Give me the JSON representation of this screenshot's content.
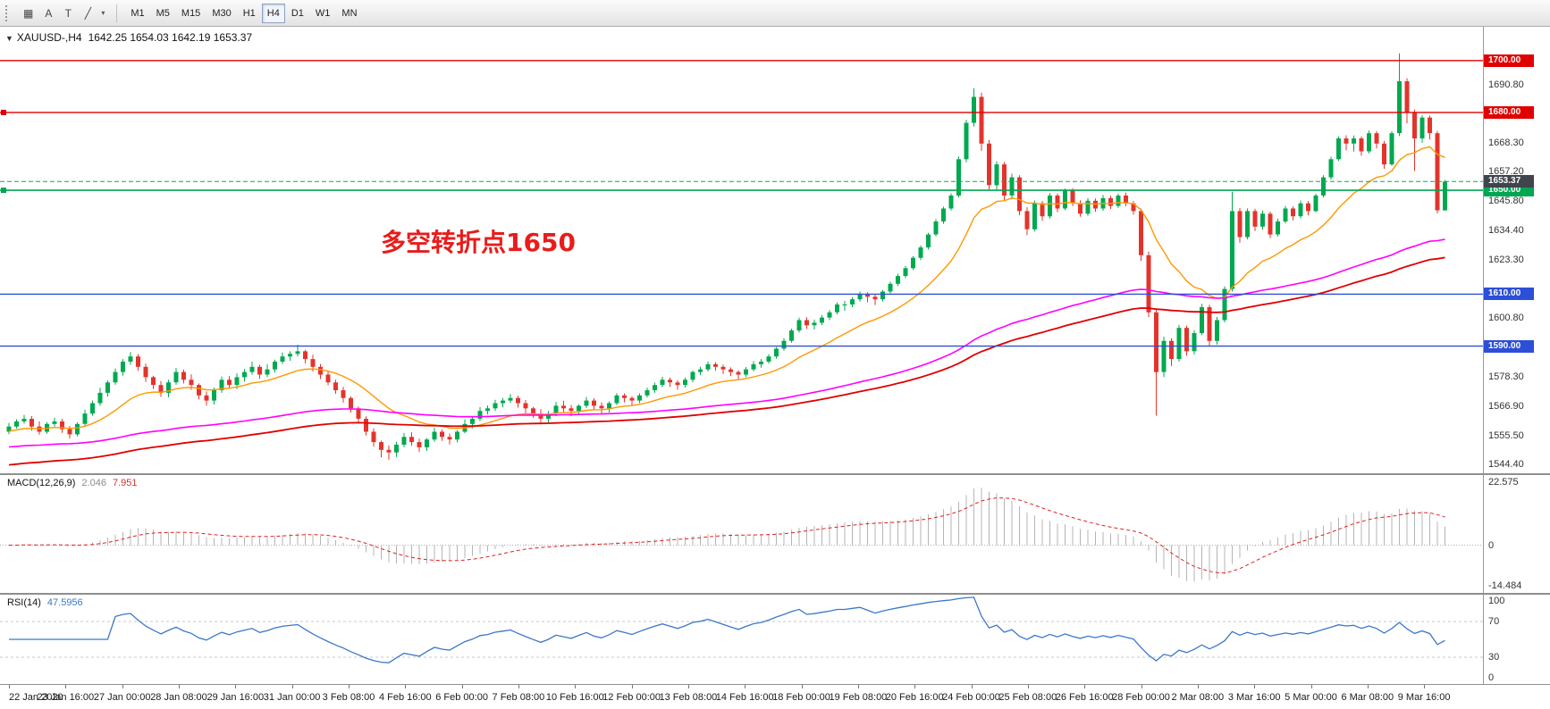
{
  "icons": {
    "collapse_glyph": "▼"
  },
  "toolbar": {
    "tools": [
      {
        "name": "objects-grid-icon",
        "glyph": "▦"
      },
      {
        "name": "text-annotation-icon",
        "glyph": "A"
      },
      {
        "name": "text-tool-icon",
        "glyph": "T"
      },
      {
        "name": "line-studies-icon",
        "glyph": "╱"
      },
      {
        "name": "line-studies-caret-icon",
        "glyph": "▾"
      }
    ],
    "timeframes": [
      "M1",
      "M5",
      "M15",
      "M30",
      "H1",
      "H4",
      "D1",
      "W1",
      "MN"
    ],
    "active": "H4"
  },
  "chart": {
    "title_symbol": "XAUUSD-,H4",
    "title_ohlc": "1642.25 1654.03 1642.19 1653.37"
  },
  "chart_data": {
    "type": "candlestick",
    "symbol": "XAUUSD-",
    "period": "H4",
    "price_range": [
      1541,
      1713
    ],
    "colors": {
      "candle_up": "#00a94f",
      "candle_down": "#e3342c",
      "macd_hist": "#b4b4b4",
      "macd_signal": "#e02020",
      "rsi": "#3a78c9"
    },
    "y_ticks": [
      1690.8,
      1668.3,
      1657.2,
      1645.8,
      1634.4,
      1623.3,
      1600.8,
      1578.3,
      1566.9,
      1555.5,
      1544.4
    ],
    "horizontal_lines": [
      {
        "price": 1700,
        "color": "#e00000",
        "width": 1.4
      },
      {
        "price": 1680,
        "color": "#e00000",
        "width": 1.4,
        "left_marker": true
      },
      {
        "price": 1650,
        "color": "#00a651",
        "width": 1.6,
        "left_marker": true
      },
      {
        "price": 1610,
        "color": "#2c4fd8",
        "width": 1.4
      },
      {
        "price": 1590,
        "color": "#2c4fd8",
        "width": 1.4
      }
    ],
    "current_price": {
      "value": 1653.37,
      "line_color": "#19a15f",
      "badge_bg": "#3f444d"
    },
    "annotation": {
      "text": "多空转折点1650",
      "color": "#e81c1c"
    },
    "moving_averages": [
      {
        "name": "ma-fast-orange",
        "period": 16,
        "seed": 1557,
        "color": "#ff9800",
        "width": 1.4
      },
      {
        "name": "ma-mid-magenta",
        "period": 96,
        "seed": 1551,
        "color": "#ff00ff",
        "width": 1.6
      },
      {
        "name": "ma-slow-red",
        "period": 120,
        "seed": 1544,
        "color": "#e00000",
        "width": 1.8
      }
    ],
    "indicators": [
      {
        "name": "MACD",
        "label": "MACD(12,26,9)",
        "values": [
          "2.046",
          "7.951"
        ],
        "params": [
          12,
          26,
          9
        ],
        "range": [
          -17,
          25
        ],
        "axis_ticks": [
          "22.575",
          "0",
          "-14.484"
        ]
      },
      {
        "name": "RSI",
        "label": "RSI(14)",
        "values": [
          "47.5956"
        ],
        "period": 14,
        "range": [
          0,
          100
        ],
        "axis_ticks": [
          "100",
          "70",
          "30",
          "0"
        ],
        "levels": [
          70,
          30
        ]
      }
    ],
    "x_labels": [
      "22 Jan 2020",
      "23 Jan 16:00",
      "27 Jan 00:00",
      "28 Jan 08:00",
      "29 Jan 16:00",
      "31 Jan 00:00",
      "3 Feb 08:00",
      "4 Feb 16:00",
      "6 Feb 00:00",
      "7 Feb 08:00",
      "10 Feb 16:00",
      "12 Feb 00:00",
      "13 Feb 08:00",
      "14 Feb 16:00",
      "18 Feb 00:00",
      "19 Feb 08:00",
      "20 Feb 16:00",
      "24 Feb 00:00",
      "25 Feb 08:00",
      "26 Feb 16:00",
      "28 Feb 00:00",
      "2 Mar 08:00",
      "3 Mar 16:00",
      "5 Mar 00:00",
      "6 Mar 08:00",
      "9 Mar 16:00"
    ],
    "candles": [
      [
        1557,
        1560.4,
        1556.1,
        1559
      ],
      [
        1559,
        1561.8,
        1558.2,
        1561
      ],
      [
        1561,
        1563.5,
        1560.1,
        1562
      ],
      [
        1562,
        1563,
        1557.4,
        1559
      ],
      [
        1559,
        1561,
        1555.9,
        1557
      ],
      [
        1557,
        1560.7,
        1556.2,
        1560
      ],
      [
        1560,
        1562.4,
        1559,
        1561
      ],
      [
        1561,
        1561.9,
        1556.6,
        1558
      ],
      [
        1558,
        1559.2,
        1554.3,
        1556
      ],
      [
        1556,
        1560.6,
        1555.2,
        1560
      ],
      [
        1560,
        1565.5,
        1559.3,
        1564
      ],
      [
        1564,
        1569,
        1563.2,
        1568
      ],
      [
        1568,
        1574,
        1567,
        1572
      ],
      [
        1572,
        1576.8,
        1570.5,
        1576
      ],
      [
        1576,
        1581.4,
        1575.1,
        1580
      ],
      [
        1580,
        1585,
        1578.6,
        1584
      ],
      [
        1584,
        1587.7,
        1582.8,
        1586
      ],
      [
        1586,
        1586.9,
        1580.5,
        1582
      ],
      [
        1582,
        1583.2,
        1576.2,
        1578
      ],
      [
        1578,
        1578.6,
        1573.4,
        1575
      ],
      [
        1575,
        1576.5,
        1570.4,
        1572
      ],
      [
        1572,
        1577,
        1570.3,
        1576
      ],
      [
        1576,
        1581.5,
        1575.1,
        1580
      ],
      [
        1580,
        1580.9,
        1575.6,
        1577
      ],
      [
        1577,
        1579.1,
        1573.2,
        1575
      ],
      [
        1575,
        1575.6,
        1569.4,
        1571
      ],
      [
        1571,
        1572.5,
        1567.1,
        1569
      ],
      [
        1569,
        1574,
        1567.5,
        1573
      ],
      [
        1573,
        1578.3,
        1572,
        1577
      ],
      [
        1577,
        1578.4,
        1573.6,
        1575
      ],
      [
        1575,
        1579.5,
        1573.4,
        1578
      ],
      [
        1578,
        1581.2,
        1576.3,
        1580
      ],
      [
        1580,
        1584,
        1579,
        1582
      ],
      [
        1582,
        1582.8,
        1577.4,
        1579
      ],
      [
        1579,
        1583,
        1578,
        1581
      ],
      [
        1581,
        1584.8,
        1579.8,
        1584
      ],
      [
        1584,
        1587.5,
        1583.1,
        1586
      ],
      [
        1586,
        1588,
        1584.3,
        1587
      ],
      [
        1587,
        1590.5,
        1586,
        1588
      ],
      [
        1588,
        1588.6,
        1583.4,
        1585
      ],
      [
        1585,
        1586.7,
        1580.2,
        1582
      ],
      [
        1582,
        1583.1,
        1577.3,
        1579
      ],
      [
        1579,
        1580.4,
        1574.9,
        1576
      ],
      [
        1576,
        1577,
        1571.6,
        1573
      ],
      [
        1573,
        1574.3,
        1568.2,
        1570
      ],
      [
        1570,
        1570.6,
        1564.4,
        1566
      ],
      [
        1566,
        1566.7,
        1560.3,
        1562
      ],
      [
        1562,
        1562.9,
        1555.5,
        1557
      ],
      [
        1557,
        1558.3,
        1551.2,
        1553
      ],
      [
        1553,
        1553.6,
        1547.1,
        1550
      ],
      [
        1550,
        1551.7,
        1546.2,
        1549
      ],
      [
        1549,
        1553.1,
        1547.3,
        1552
      ],
      [
        1552,
        1556.5,
        1551,
        1555
      ],
      [
        1555,
        1556.8,
        1551.6,
        1553
      ],
      [
        1553,
        1554.3,
        1549.2,
        1551
      ],
      [
        1551,
        1554.6,
        1549.6,
        1554
      ],
      [
        1554,
        1558.5,
        1553.1,
        1557
      ],
      [
        1557,
        1557.8,
        1553.5,
        1555
      ],
      [
        1555,
        1556.3,
        1552.1,
        1554
      ],
      [
        1554,
        1557.6,
        1552.9,
        1557
      ],
      [
        1557,
        1561.7,
        1556.4,
        1560
      ],
      [
        1560,
        1563,
        1558.3,
        1562
      ],
      [
        1562,
        1566.5,
        1561.1,
        1565
      ],
      [
        1565,
        1567.1,
        1563.6,
        1566
      ],
      [
        1566,
        1569.3,
        1565,
        1568
      ],
      [
        1568,
        1570,
        1566.4,
        1569
      ],
      [
        1569,
        1571.5,
        1568.1,
        1570
      ],
      [
        1570,
        1570.9,
        1566.3,
        1568
      ],
      [
        1568,
        1569.2,
        1564.2,
        1566
      ],
      [
        1566,
        1566.6,
        1562.4,
        1564
      ],
      [
        1564,
        1565.7,
        1560.2,
        1562
      ],
      [
        1562,
        1565,
        1560.3,
        1564
      ],
      [
        1564,
        1568.4,
        1563,
        1567
      ],
      [
        1567,
        1568.9,
        1564.6,
        1566
      ],
      [
        1566,
        1567.3,
        1563,
        1565
      ],
      [
        1565,
        1567.6,
        1563.5,
        1567
      ],
      [
        1567,
        1570.4,
        1566.1,
        1569
      ],
      [
        1569,
        1569.9,
        1565.3,
        1567
      ],
      [
        1567,
        1568.3,
        1564,
        1566
      ],
      [
        1566,
        1568.7,
        1564.4,
        1568
      ],
      [
        1568,
        1571.9,
        1567.2,
        1571
      ],
      [
        1571,
        1571.8,
        1568.3,
        1570
      ],
      [
        1570,
        1570.7,
        1567.1,
        1569
      ],
      [
        1569,
        1571.8,
        1568,
        1571
      ],
      [
        1571,
        1574,
        1570.2,
        1573
      ],
      [
        1573,
        1575.9,
        1572,
        1575
      ],
      [
        1575,
        1578.2,
        1574.1,
        1577
      ],
      [
        1577,
        1577.9,
        1574.3,
        1576
      ],
      [
        1576,
        1576.8,
        1573.2,
        1575
      ],
      [
        1575,
        1577.9,
        1574,
        1577
      ],
      [
        1577,
        1580.6,
        1576.1,
        1580
      ],
      [
        1580,
        1582,
        1578.8,
        1581
      ],
      [
        1581,
        1584.1,
        1580.2,
        1583
      ],
      [
        1583,
        1583.8,
        1580.5,
        1582
      ],
      [
        1582,
        1582.9,
        1579.3,
        1581
      ],
      [
        1581,
        1581.8,
        1578.4,
        1580
      ],
      [
        1580,
        1580.7,
        1577.2,
        1579
      ],
      [
        1579,
        1581.9,
        1578.1,
        1581
      ],
      [
        1581,
        1584.2,
        1580.3,
        1583
      ],
      [
        1583,
        1585,
        1581.7,
        1584
      ],
      [
        1584,
        1586.9,
        1583.2,
        1586
      ],
      [
        1586,
        1589.6,
        1585.1,
        1589
      ],
      [
        1589,
        1593,
        1588.2,
        1592
      ],
      [
        1592,
        1596.7,
        1591.3,
        1596
      ],
      [
        1596,
        1601,
        1595.2,
        1600
      ],
      [
        1600,
        1601.1,
        1596.6,
        1598
      ],
      [
        1598,
        1600.2,
        1596.4,
        1599
      ],
      [
        1599,
        1602,
        1598.1,
        1601
      ],
      [
        1601,
        1603.9,
        1600,
        1603
      ],
      [
        1603,
        1606.8,
        1602.2,
        1606
      ],
      [
        1606,
        1607.4,
        1603.6,
        1606
      ],
      [
        1606,
        1608.9,
        1605,
        1608
      ],
      [
        1608,
        1611,
        1607.1,
        1610
      ],
      [
        1610,
        1610.8,
        1606.9,
        1609
      ],
      [
        1609,
        1609.9,
        1605.8,
        1608
      ],
      [
        1608,
        1611.6,
        1607.2,
        1611
      ],
      [
        1611,
        1614.8,
        1610.3,
        1614
      ],
      [
        1614,
        1617.9,
        1613.1,
        1617
      ],
      [
        1617,
        1620.8,
        1616.2,
        1620
      ],
      [
        1620,
        1624.7,
        1619.3,
        1624
      ],
      [
        1624,
        1628.8,
        1623.1,
        1628
      ],
      [
        1628,
        1633.6,
        1627.2,
        1633
      ],
      [
        1633,
        1638.9,
        1632.3,
        1638
      ],
      [
        1638,
        1643.7,
        1637.1,
        1643
      ],
      [
        1643,
        1648.8,
        1642.2,
        1648
      ],
      [
        1648,
        1663,
        1647.3,
        1662
      ],
      [
        1662,
        1677.2,
        1660.8,
        1676
      ],
      [
        1676,
        1689.3,
        1674.6,
        1686
      ],
      [
        1686,
        1687.6,
        1665.3,
        1668
      ],
      [
        1668,
        1669.4,
        1649.8,
        1652
      ],
      [
        1652,
        1661.2,
        1650.3,
        1660
      ],
      [
        1660,
        1660.9,
        1646.2,
        1648
      ],
      [
        1648,
        1656.4,
        1646.5,
        1655
      ],
      [
        1655,
        1655.8,
        1640.4,
        1642
      ],
      [
        1642,
        1643.5,
        1632.7,
        1635
      ],
      [
        1635,
        1646.1,
        1634.2,
        1645
      ],
      [
        1645,
        1645.9,
        1638.3,
        1640
      ],
      [
        1640,
        1648.9,
        1639.1,
        1648
      ],
      [
        1648,
        1648.8,
        1641.6,
        1643
      ],
      [
        1643,
        1650.7,
        1642.3,
        1650
      ],
      [
        1650,
        1650.8,
        1643.9,
        1645
      ],
      [
        1645,
        1646.2,
        1639.8,
        1641
      ],
      [
        1641,
        1647,
        1640.2,
        1646
      ],
      [
        1646,
        1646.9,
        1641.7,
        1643
      ],
      [
        1643,
        1648.2,
        1642.1,
        1647
      ],
      [
        1647,
        1647.9,
        1642.8,
        1644
      ],
      [
        1644,
        1648.7,
        1643.2,
        1648
      ],
      [
        1648,
        1649.1,
        1643.9,
        1645
      ],
      [
        1645,
        1645.8,
        1640.6,
        1642
      ],
      [
        1642,
        1643,
        1622.8,
        1625
      ],
      [
        1625,
        1626.4,
        1601.2,
        1603
      ],
      [
        1603,
        1604.1,
        1563.2,
        1580
      ],
      [
        1580,
        1593.6,
        1578.1,
        1592
      ],
      [
        1592,
        1593,
        1582.4,
        1585
      ],
      [
        1585,
        1598.2,
        1584,
        1597
      ],
      [
        1597,
        1597.9,
        1586.3,
        1588
      ],
      [
        1588,
        1596.1,
        1586.8,
        1595
      ],
      [
        1595,
        1606.3,
        1594.2,
        1605
      ],
      [
        1605,
        1605.9,
        1589.9,
        1592
      ],
      [
        1592,
        1601.2,
        1590.6,
        1600
      ],
      [
        1600,
        1613,
        1599.1,
        1612
      ],
      [
        1612,
        1649.5,
        1611,
        1642
      ],
      [
        1642,
        1643.2,
        1629.8,
        1632
      ],
      [
        1632,
        1643,
        1631.1,
        1642
      ],
      [
        1642,
        1642.9,
        1634.3,
        1636
      ],
      [
        1636,
        1642.2,
        1634.8,
        1641
      ],
      [
        1641,
        1641.8,
        1631.6,
        1633
      ],
      [
        1633,
        1639.1,
        1632.2,
        1638
      ],
      [
        1638,
        1644,
        1637.3,
        1643
      ],
      [
        1643,
        1643.8,
        1638.4,
        1640
      ],
      [
        1640,
        1646.1,
        1639.2,
        1645
      ],
      [
        1645,
        1645.9,
        1640.3,
        1642
      ],
      [
        1642,
        1648.7,
        1641.5,
        1648
      ],
      [
        1648,
        1655.8,
        1647.2,
        1655
      ],
      [
        1655,
        1662.9,
        1654.1,
        1662
      ],
      [
        1662,
        1670.8,
        1661.3,
        1670
      ],
      [
        1670,
        1671.2,
        1665.4,
        1668
      ],
      [
        1668,
        1671.1,
        1664.9,
        1670
      ],
      [
        1670,
        1670.8,
        1663.3,
        1665
      ],
      [
        1665,
        1673,
        1664.2,
        1672
      ],
      [
        1672,
        1672.9,
        1666.1,
        1668
      ],
      [
        1668,
        1669,
        1658.3,
        1660
      ],
      [
        1660,
        1672.8,
        1659.4,
        1672
      ],
      [
        1672,
        1702.8,
        1670.9,
        1692
      ],
      [
        1692,
        1693.2,
        1675.8,
        1680
      ],
      [
        1680,
        1681.1,
        1657.4,
        1670
      ],
      [
        1670,
        1678.9,
        1668.3,
        1678
      ],
      [
        1678,
        1678.8,
        1669.6,
        1672
      ],
      [
        1672,
        1672.9,
        1641.1,
        1642.3
      ],
      [
        1642.3,
        1654,
        1642.2,
        1653.4
      ]
    ]
  }
}
